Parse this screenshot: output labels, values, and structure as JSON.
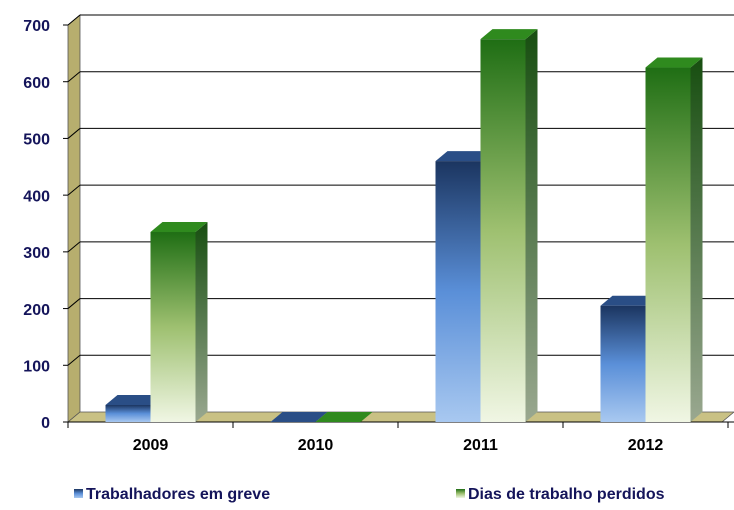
{
  "chart_data": {
    "type": "bar3d",
    "categories": [
      "2009",
      "2010",
      "2011",
      "2012"
    ],
    "series": [
      {
        "name": "Trabalhadores em greve",
        "color": "#4a7bc4",
        "values": [
          30,
          0,
          460,
          205
        ]
      },
      {
        "name": "Dias de trabalho perdidos",
        "color": "#3a8a22",
        "values": [
          335,
          0,
          675,
          625
        ]
      }
    ],
    "ylim": [
      0,
      700
    ],
    "yticks": [
      0,
      100,
      200,
      300,
      400,
      500,
      600,
      700
    ],
    "grid": true
  }
}
